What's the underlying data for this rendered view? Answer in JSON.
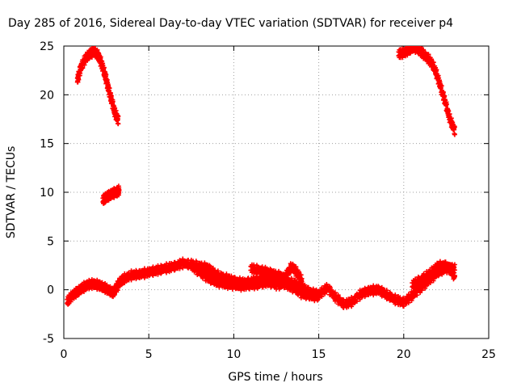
{
  "chart_data": {
    "type": "scatter",
    "title": "Day 285 of 2016, Sidereal Day-to-day VTEC variation (SDTVAR) for receiver p4",
    "xlabel": "GPS time / hours",
    "ylabel": "SDTVAR / TECUs",
    "xlim": [
      0,
      25
    ],
    "ylim": [
      -5,
      25
    ],
    "xticks": [
      0,
      5,
      10,
      15,
      20,
      25
    ],
    "yticks": [
      -5,
      0,
      5,
      10,
      15,
      20,
      25
    ],
    "grid": true,
    "marker": "plus",
    "series": [
      {
        "name": "SDTVAR",
        "color": "#ff0000",
        "traces": [
          {
            "x": [
              0.8,
              1.0,
              1.3,
              1.6,
              1.8,
              2.0,
              2.2,
              2.4,
              2.6,
              2.8,
              3.0,
              3.2
            ],
            "y": [
              21.5,
              22.8,
              23.8,
              24.3,
              24.4,
              24.1,
              23.3,
              22.2,
              20.8,
              19.5,
              18.2,
              17.4
            ]
          },
          {
            "x": [
              2.3,
              2.5,
              2.7,
              2.9,
              3.1,
              3.25
            ],
            "y": [
              9.2,
              9.5,
              9.7,
              9.9,
              10.0,
              10.2
            ]
          },
          {
            "x": [
              19.7,
              20.0,
              20.3,
              20.6,
              20.9,
              21.2,
              21.5,
              21.8,
              22.1,
              22.4,
              22.7,
              23.0
            ],
            "y": [
              24.2,
              24.3,
              24.6,
              24.9,
              24.6,
              24.1,
              23.6,
              22.8,
              21.2,
              19.5,
              17.6,
              16.3
            ]
          },
          {
            "x": [
              0.2,
              0.5,
              0.8,
              1.1,
              1.4,
              1.7,
              2.0,
              2.3,
              2.6,
              2.9,
              3.1,
              3.3,
              3.6,
              4.0,
              4.5,
              5.0,
              5.5,
              6.0,
              6.5,
              7.0,
              7.5,
              8.0,
              8.5,
              9.0,
              9.5,
              10.0,
              10.5,
              11.0,
              11.5,
              12.0,
              12.5,
              13.0,
              13.5,
              14.0,
              14.5,
              15.0,
              15.5,
              16.0,
              16.5,
              17.0,
              17.5,
              18.0,
              18.5,
              19.0,
              19.5,
              20.0,
              20.5,
              21.0,
              21.5,
              22.0,
              22.5,
              23.0
            ],
            "y": [
              -1.2,
              -0.6,
              -0.2,
              0.2,
              0.5,
              0.6,
              0.5,
              0.3,
              0.0,
              -0.3,
              0.2,
              0.8,
              1.2,
              1.5,
              1.6,
              1.8,
              2.0,
              2.2,
              2.4,
              2.7,
              2.6,
              2.4,
              2.2,
              1.5,
              1.2,
              0.9,
              0.7,
              0.8,
              1.0,
              1.4,
              1.2,
              0.8,
              0.7,
              0.3,
              -0.3,
              -0.5,
              0.2,
              -0.8,
              -1.5,
              -1.2,
              -0.4,
              -0.1,
              0.0,
              -0.5,
              -1.0,
              -1.3,
              -0.6,
              0.2,
              1.0,
              1.8,
              2.2,
              2.3
            ]
          },
          {
            "x": [
              7.5,
              8.0,
              8.5,
              9.0,
              9.5,
              10.0,
              10.5,
              11.0,
              11.5,
              12.0,
              12.5,
              13.0,
              13.5,
              14.0,
              14.5,
              15.0
            ],
            "y": [
              2.5,
              1.8,
              1.2,
              0.8,
              0.6,
              0.5,
              0.4,
              0.5,
              0.6,
              0.8,
              0.5,
              0.6,
              0.2,
              -0.4,
              -0.6,
              -0.7
            ]
          },
          {
            "x": [
              11.0,
              11.5,
              12.0,
              12.5,
              13.0,
              13.4,
              13.7,
              14.0
            ],
            "y": [
              2.2,
              2.0,
              1.8,
              1.5,
              1.2,
              2.4,
              1.8,
              1.0
            ]
          },
          {
            "x": [
              20.5,
              21.0,
              21.5,
              22.0,
              22.5,
              23.0
            ],
            "y": [
              0.5,
              1.0,
              1.6,
              2.4,
              2.5,
              1.4
            ]
          }
        ]
      }
    ]
  }
}
